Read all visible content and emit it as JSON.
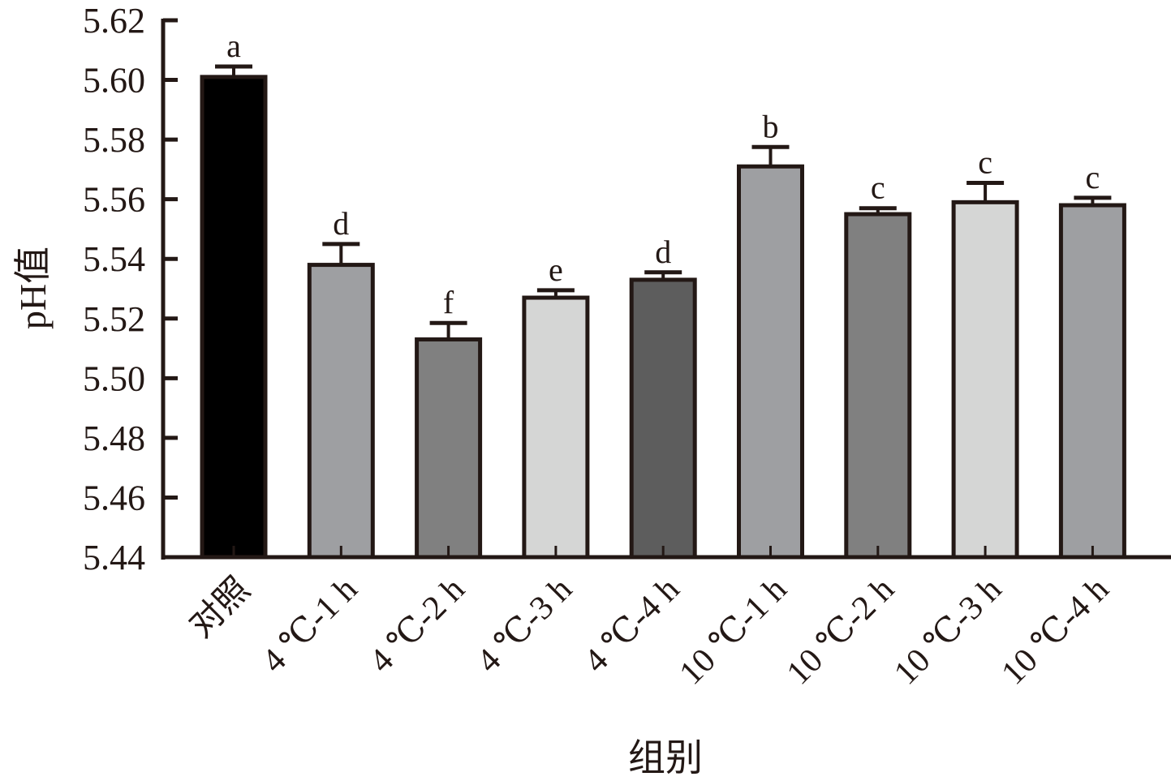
{
  "chart_data": {
    "type": "bar",
    "title": "",
    "xlabel": "组别",
    "ylabel": "pH值",
    "ylim": [
      5.44,
      5.62
    ],
    "yticks": [
      "5.44",
      "5.46",
      "5.48",
      "5.50",
      "5.52",
      "5.54",
      "5.56",
      "5.58",
      "5.60",
      "5.62"
    ],
    "grid": false,
    "legend": null,
    "categories": [
      "对照",
      "4 ℃-1 h",
      "4 ℃-2 h",
      "4 ℃-3 h",
      "4 ℃-4 h",
      "10 ℃-1 h",
      "10 ℃-2 h",
      "10 ℃-3 h",
      "10 ℃-4 h"
    ],
    "values": [
      5.601,
      5.538,
      5.513,
      5.527,
      5.533,
      5.571,
      5.555,
      5.559,
      5.558
    ],
    "error": [
      0.0035,
      0.007,
      0.0055,
      0.0025,
      0.0025,
      0.0065,
      0.002,
      0.0065,
      0.0025
    ],
    "significance": [
      "a",
      "d",
      "f",
      "e",
      "d",
      "b",
      "c",
      "c",
      "c"
    ],
    "colors": [
      "#000000",
      "#9e9fa2",
      "#808080",
      "#d5d6d5",
      "#5d5d5d",
      "#9e9fa2",
      "#808080",
      "#d5d6d5",
      "#9e9fa2"
    ],
    "edge_color": "#231815"
  }
}
